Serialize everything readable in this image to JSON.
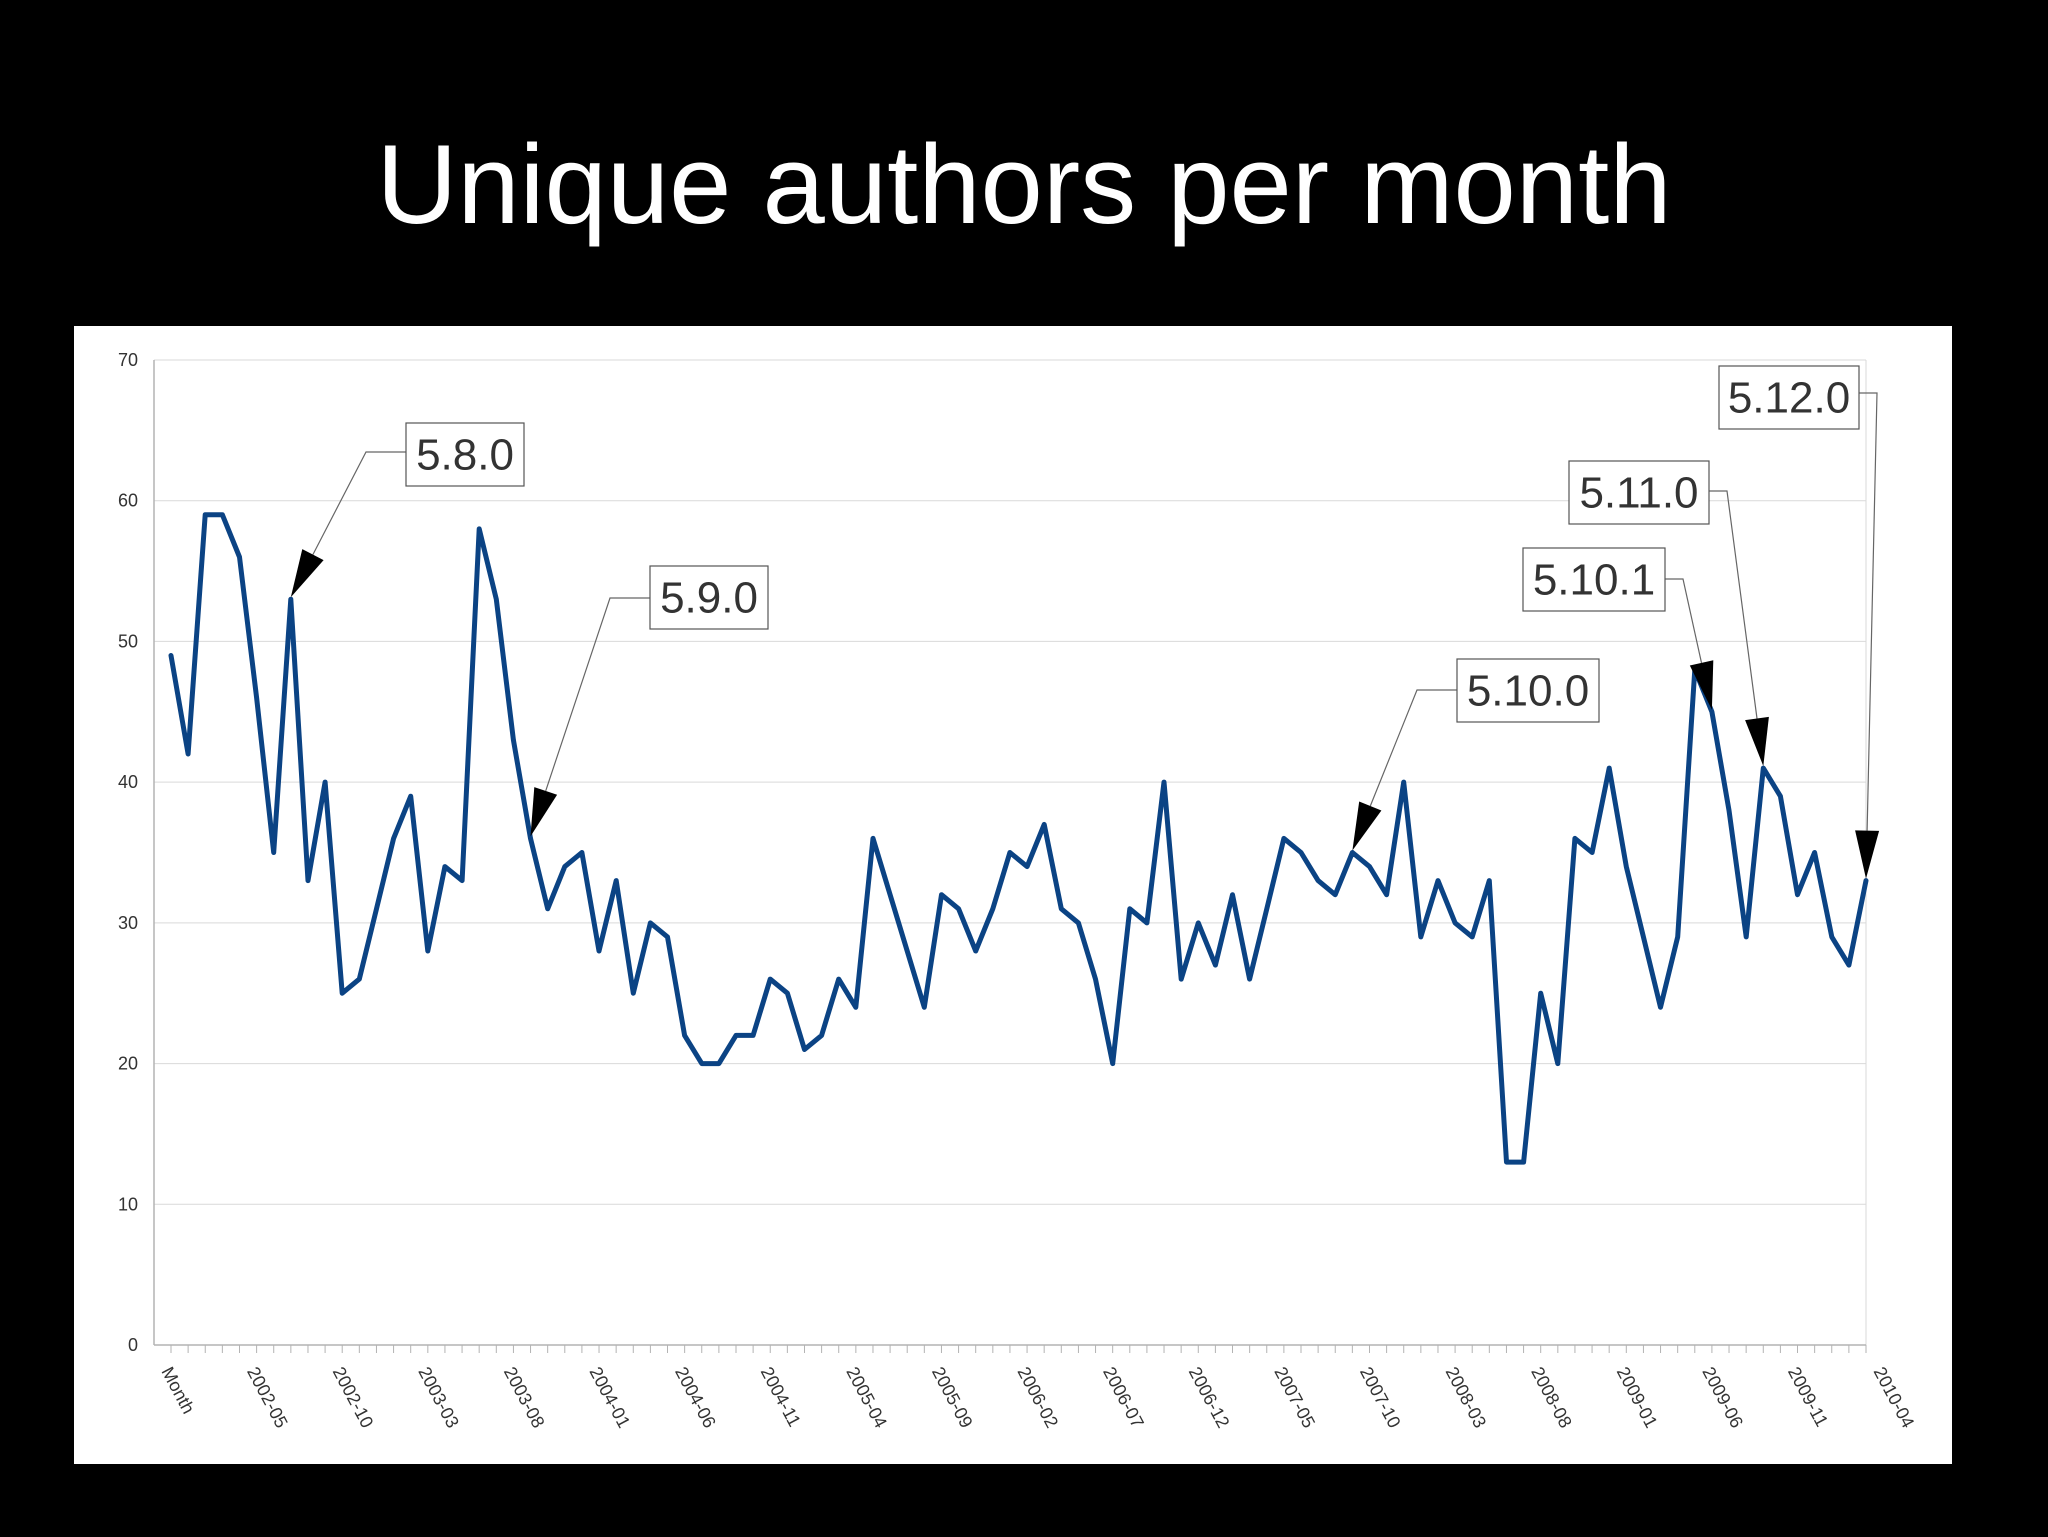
{
  "title": "Unique authors per month",
  "colors": {
    "background": "#000000",
    "panel": "#ffffff",
    "line": "#0b4384",
    "grid": "#d9d9d9",
    "axis": "#b3b3b3"
  },
  "chart_data": {
    "type": "line",
    "title": "",
    "xlabel": "",
    "ylabel": "",
    "ylim": [
      0,
      70
    ],
    "yticks": [
      0,
      10,
      20,
      30,
      40,
      50,
      60,
      70
    ],
    "grid": true,
    "legend": "none",
    "x_tick_labels": [
      {
        "index": 0,
        "label": "Month"
      },
      {
        "index": 5,
        "label": "2002-05"
      },
      {
        "index": 10,
        "label": "2002-10"
      },
      {
        "index": 15,
        "label": "2003-03"
      },
      {
        "index": 20,
        "label": "2003-08"
      },
      {
        "index": 25,
        "label": "2004-01"
      },
      {
        "index": 30,
        "label": "2004-06"
      },
      {
        "index": 35,
        "label": "2004-11"
      },
      {
        "index": 40,
        "label": "2005-04"
      },
      {
        "index": 45,
        "label": "2005-09"
      },
      {
        "index": 50,
        "label": "2006-02"
      },
      {
        "index": 55,
        "label": "2006-07"
      },
      {
        "index": 60,
        "label": "2006-12"
      },
      {
        "index": 65,
        "label": "2007-05"
      },
      {
        "index": 70,
        "label": "2007-10"
      },
      {
        "index": 75,
        "label": "2008-03"
      },
      {
        "index": 80,
        "label": "2008-08"
      },
      {
        "index": 85,
        "label": "2009-01"
      },
      {
        "index": 90,
        "label": "2009-06"
      },
      {
        "index": 95,
        "label": "2009-11"
      },
      {
        "index": 100,
        "label": "2010-04"
      }
    ],
    "series": [
      {
        "values": [
          49,
          42,
          59,
          59,
          56,
          46,
          35,
          53,
          33,
          40,
          25,
          26,
          31,
          36,
          39,
          28,
          34,
          33,
          58,
          53,
          43,
          36,
          31,
          34,
          35,
          28,
          33,
          25,
          30,
          29,
          22,
          20,
          20,
          22,
          22,
          26,
          25,
          21,
          22,
          26,
          24,
          36,
          32,
          28,
          24,
          32,
          31,
          28,
          31,
          35,
          34,
          37,
          31,
          30,
          26,
          20,
          31,
          30,
          40,
          26,
          30,
          27,
          32,
          26,
          31,
          36,
          35,
          33,
          32,
          35,
          34,
          32,
          40,
          29,
          33,
          30,
          29,
          33,
          13,
          13,
          25,
          20,
          36,
          35,
          41,
          34,
          29,
          24,
          29,
          48,
          45,
          38,
          29,
          41,
          39,
          32,
          35,
          29,
          27,
          33
        ]
      }
    ],
    "annotations": [
      {
        "label": "5.8.0",
        "index": 7,
        "value": 53
      },
      {
        "label": "5.9.0",
        "index": 21,
        "value": 36
      },
      {
        "label": "5.10.0",
        "index": 69,
        "value": 35
      },
      {
        "label": "5.10.1",
        "index": 90,
        "value": 45
      },
      {
        "label": "5.11.0",
        "index": 93,
        "value": 41
      },
      {
        "label": "5.12.0",
        "index": 99,
        "value": 33
      }
    ]
  }
}
